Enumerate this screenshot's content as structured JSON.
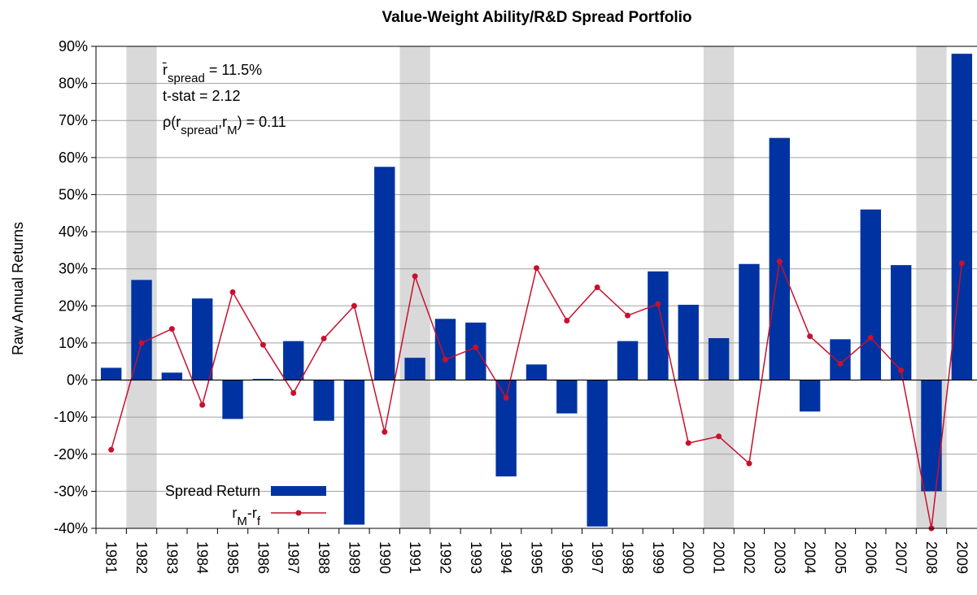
{
  "chart_data": {
    "type": "bar",
    "title": "Value-Weight Ability/R&D Spread Portfolio",
    "y_label": "Raw Annual Returns",
    "categories": [
      "1981",
      "1982",
      "1983",
      "1984",
      "1985",
      "1986",
      "1987",
      "1988",
      "1989",
      "1990",
      "1991",
      "1992",
      "1993",
      "1994",
      "1995",
      "1996",
      "1997",
      "1998",
      "1999",
      "2000",
      "2001",
      "2002",
      "2003",
      "2004",
      "2005",
      "2006",
      "2007",
      "2008",
      "2009"
    ],
    "shaded_categories": [
      "1982",
      "1991",
      "2001",
      "2008"
    ],
    "shade_color": "#d9d9d9",
    "series": [
      {
        "name": [
          {
            "text": "Spread Return"
          }
        ],
        "type": "bar",
        "color": "#0033a1",
        "values": [
          3.3,
          27,
          2,
          22,
          -10.5,
          0.3,
          10.5,
          -11,
          -39,
          57.5,
          6,
          16.5,
          15.5,
          -26,
          4.2,
          -9,
          -39.5,
          10.5,
          29.3,
          20.3,
          11.3,
          31.3,
          65.3,
          -8.5,
          11,
          46,
          31,
          -30,
          88
        ]
      },
      {
        "name": [
          {
            "text": "r"
          },
          {
            "text": "M",
            "sub": true
          },
          {
            "text": "-r"
          },
          {
            "text": "f",
            "sub": true
          }
        ],
        "type": "line",
        "color": "#c8102e",
        "values": [
          -18.8,
          10,
          13.8,
          -6.7,
          23.7,
          9.5,
          -3.5,
          11.2,
          20,
          -14,
          28,
          5.5,
          8.8,
          -4.8,
          30.2,
          16,
          25,
          17.4,
          20.5,
          -17,
          -15.2,
          -22.5,
          32,
          11.8,
          4.4,
          11.4,
          2.6,
          -40,
          31.5
        ]
      }
    ],
    "annotations": [
      [
        {
          "text": "r̄"
        },
        {
          "text": "spread",
          "sub": true
        },
        {
          "text": " = 11.5%"
        }
      ],
      [
        {
          "text": "t-stat = 2.12"
        }
      ],
      [
        {
          "text": "ρ(r"
        },
        {
          "text": "spread",
          "sub": true
        },
        {
          "text": ",r"
        },
        {
          "text": "M",
          "sub": true
        },
        {
          "text": ") = 0.11"
        }
      ]
    ],
    "ylim": [
      -40,
      90
    ],
    "yticks": [
      {
        "value": -40,
        "label": "-40%"
      },
      {
        "value": -30,
        "label": "-30%"
      },
      {
        "value": -20,
        "label": "-20%"
      },
      {
        "value": -10,
        "label": "-10%"
      },
      {
        "value": 0,
        "label": "0%"
      },
      {
        "value": 10,
        "label": "10%"
      },
      {
        "value": 20,
        "label": "20%"
      },
      {
        "value": 30,
        "label": "30%"
      },
      {
        "value": 40,
        "label": "40%"
      },
      {
        "value": 50,
        "label": "50%"
      },
      {
        "value": 60,
        "label": "60%"
      },
      {
        "value": 70,
        "label": "70%"
      },
      {
        "value": 80,
        "label": "80%"
      },
      {
        "value": 90,
        "label": "90%"
      }
    ],
    "grid": true,
    "legend": "lower left"
  }
}
